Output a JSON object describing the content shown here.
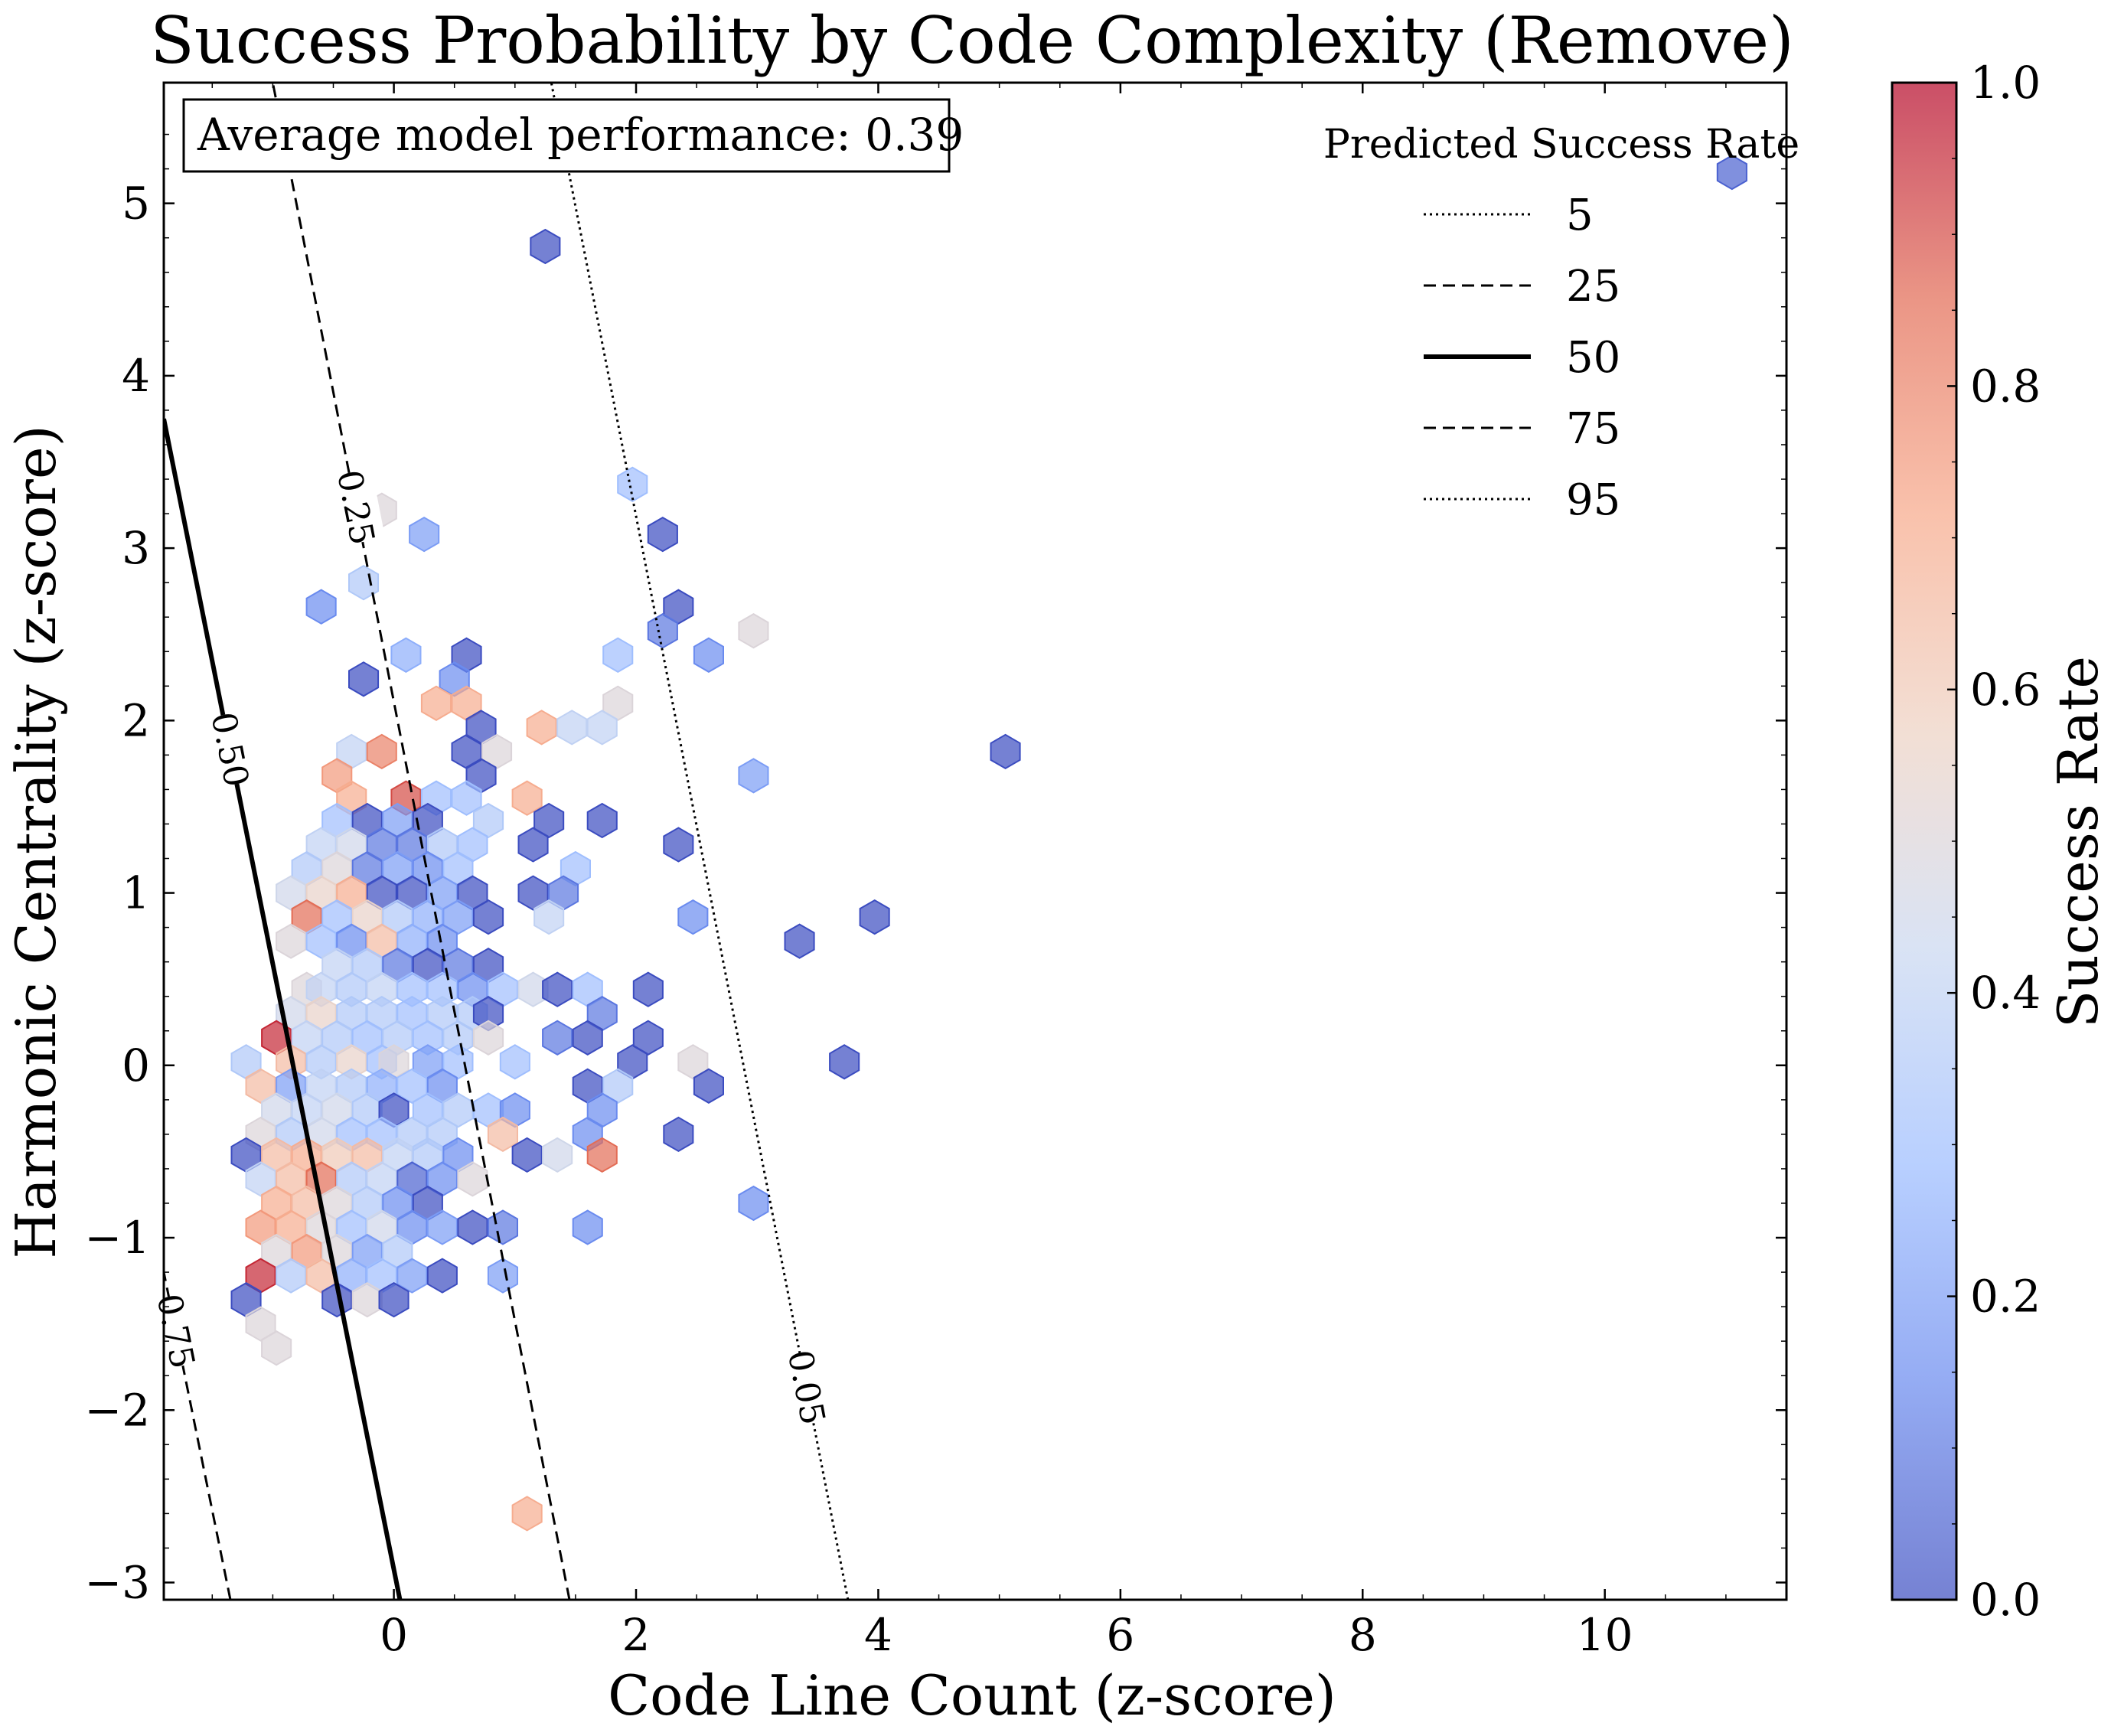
{
  "chart_data": {
    "type": "heatmap",
    "subtype": "hexbin-with-contours",
    "title": "Success Probability by Code Complexity (Remove)",
    "xlabel": "Code Line Count (z-score)",
    "ylabel": "Harmonic Centrality (z-score)",
    "xlim": [
      -1.9,
      11.5
    ],
    "ylim": [
      -3.1,
      5.7
    ],
    "xticks": [
      0,
      2,
      4,
      6,
      8,
      10
    ],
    "yticks": [
      -3,
      -2,
      -1,
      0,
      1,
      2,
      3,
      4,
      5
    ],
    "xtick_labels": [
      "0",
      "2",
      "4",
      "6",
      "8",
      "10"
    ],
    "ytick_labels": [
      "−3",
      "−2",
      "−1",
      "0",
      "1",
      "2",
      "3",
      "4",
      "5"
    ],
    "annotation": "Average model performance: 0.39",
    "legend": {
      "title": "Predicted Success Rate",
      "position": "top-right",
      "entries": [
        {
          "label": "5",
          "style": "dotted"
        },
        {
          "label": "25",
          "style": "dashed"
        },
        {
          "label": "50",
          "style": "solid"
        },
        {
          "label": "75",
          "style": "dashed"
        },
        {
          "label": "95",
          "style": "dotted"
        }
      ]
    },
    "contours": [
      {
        "level": "0.05",
        "style": "dotted",
        "x_at_bottom": 3.75,
        "x_at_top": 1.3
      },
      {
        "level": "0.25",
        "style": "dashed",
        "x_at_bottom": 1.45,
        "x_at_top": -1.0
      },
      {
        "level": "0.50",
        "style": "solid",
        "x_at_bottom": 0.05,
        "x_at_top": -1.9,
        "y_top": 3.75
      },
      {
        "level": "0.75",
        "style": "dashed",
        "x_at_bottom": -1.35,
        "x_at_top": -1.9,
        "y_top": -1.2
      }
    ],
    "colorbar": {
      "label": "Success Rate",
      "min": 0.0,
      "max": 1.0,
      "ticks": [
        "0.0",
        "0.2",
        "0.4",
        "0.6",
        "0.8",
        "1.0"
      ],
      "colormap": [
        "#3b4cc0",
        "#6788ee",
        "#9abbff",
        "#c9d7f0",
        "#edd1c2",
        "#f7a889",
        "#e26952",
        "#b40426"
      ]
    },
    "hexbins": [
      [
        11.05,
        5.18,
        0.05
      ],
      [
        1.25,
        4.75,
        0.0
      ],
      [
        1.97,
        3.37,
        0.3
      ],
      [
        2.22,
        3.08,
        0.0
      ],
      [
        0.25,
        3.08,
        0.2
      ],
      [
        -0.1,
        3.22,
        0.5
      ],
      [
        -0.25,
        2.8,
        0.35
      ],
      [
        -0.6,
        2.66,
        0.15
      ],
      [
        2.35,
        2.66,
        0.0
      ],
      [
        2.22,
        2.52,
        0.1
      ],
      [
        2.6,
        2.38,
        0.15
      ],
      [
        2.97,
        2.52,
        0.5
      ],
      [
        1.85,
        2.38,
        0.3
      ],
      [
        0.1,
        2.38,
        0.25
      ],
      [
        0.6,
        2.38,
        0.0
      ],
      [
        -0.25,
        2.24,
        0.0
      ],
      [
        0.5,
        2.24,
        0.15
      ],
      [
        0.35,
        2.1,
        0.7
      ],
      [
        0.6,
        2.1,
        0.7
      ],
      [
        1.85,
        2.1,
        0.5
      ],
      [
        0.72,
        1.96,
        0.0
      ],
      [
        1.22,
        1.96,
        0.7
      ],
      [
        1.47,
        1.96,
        0.4
      ],
      [
        1.72,
        1.96,
        0.4
      ],
      [
        0.6,
        1.82,
        0.0
      ],
      [
        0.85,
        1.82,
        0.5
      ],
      [
        -0.35,
        1.82,
        0.4
      ],
      [
        -0.1,
        1.82,
        0.8
      ],
      [
        5.05,
        1.82,
        0.0
      ],
      [
        0.72,
        1.68,
        0.0
      ],
      [
        -0.47,
        1.68,
        0.75
      ],
      [
        2.97,
        1.68,
        0.2
      ],
      [
        0.1,
        1.55,
        0.9
      ],
      [
        -0.35,
        1.55,
        0.7
      ],
      [
        0.35,
        1.55,
        0.3
      ],
      [
        0.6,
        1.55,
        0.3
      ],
      [
        1.1,
        1.55,
        0.7
      ],
      [
        -0.47,
        1.42,
        0.3
      ],
      [
        -0.22,
        1.42,
        0.0
      ],
      [
        0.03,
        1.42,
        0.2
      ],
      [
        0.28,
        1.42,
        0.0
      ],
      [
        0.78,
        1.42,
        0.35
      ],
      [
        1.28,
        1.42,
        0.0
      ],
      [
        1.72,
        1.42,
        0.0
      ],
      [
        -0.6,
        1.28,
        0.4
      ],
      [
        -0.35,
        1.28,
        0.45
      ],
      [
        -0.1,
        1.28,
        0.1
      ],
      [
        0.15,
        1.28,
        0.1
      ],
      [
        0.4,
        1.28,
        0.35
      ],
      [
        0.65,
        1.28,
        0.3
      ],
      [
        1.15,
        1.28,
        0.0
      ],
      [
        2.35,
        1.28,
        0.0
      ],
      [
        -0.72,
        1.14,
        0.35
      ],
      [
        -0.47,
        1.14,
        0.5
      ],
      [
        -0.22,
        1.14,
        0.1
      ],
      [
        0.03,
        1.14,
        0.2
      ],
      [
        0.28,
        1.14,
        0.15
      ],
      [
        0.53,
        1.14,
        0.3
      ],
      [
        1.5,
        1.14,
        0.3
      ],
      [
        -0.85,
        1.0,
        0.45
      ],
      [
        -0.6,
        1.0,
        0.55
      ],
      [
        -0.35,
        1.0,
        0.7
      ],
      [
        -0.1,
        1.0,
        0.0
      ],
      [
        0.15,
        1.0,
        0.0
      ],
      [
        0.4,
        1.0,
        0.2
      ],
      [
        0.65,
        1.0,
        0.0
      ],
      [
        1.15,
        1.0,
        0.0
      ],
      [
        1.4,
        1.0,
        0.1
      ],
      [
        -0.72,
        0.86,
        0.85
      ],
      [
        -0.47,
        0.86,
        0.3
      ],
      [
        -0.22,
        0.86,
        0.55
      ],
      [
        0.03,
        0.86,
        0.35
      ],
      [
        0.28,
        0.86,
        0.25
      ],
      [
        0.53,
        0.86,
        0.2
      ],
      [
        0.78,
        0.86,
        0.0
      ],
      [
        1.28,
        0.86,
        0.4
      ],
      [
        2.47,
        0.86,
        0.15
      ],
      [
        3.97,
        0.86,
        0.0
      ],
      [
        -0.85,
        0.72,
        0.5
      ],
      [
        -0.6,
        0.72,
        0.3
      ],
      [
        -0.35,
        0.72,
        0.15
      ],
      [
        -0.1,
        0.72,
        0.65
      ],
      [
        0.15,
        0.72,
        0.25
      ],
      [
        0.4,
        0.72,
        0.15
      ],
      [
        3.35,
        0.72,
        0.0
      ],
      [
        -0.47,
        0.58,
        0.4
      ],
      [
        -0.22,
        0.58,
        0.35
      ],
      [
        0.03,
        0.58,
        0.1
      ],
      [
        0.28,
        0.58,
        0.0
      ],
      [
        0.53,
        0.58,
        0.1
      ],
      [
        0.78,
        0.58,
        0.0
      ],
      [
        -0.72,
        0.44,
        0.5
      ],
      [
        -0.6,
        0.44,
        0.4
      ],
      [
        -0.35,
        0.44,
        0.35
      ],
      [
        -0.1,
        0.44,
        0.4
      ],
      [
        0.15,
        0.44,
        0.3
      ],
      [
        0.4,
        0.44,
        0.3
      ],
      [
        0.65,
        0.44,
        0.15
      ],
      [
        0.9,
        0.44,
        0.3
      ],
      [
        1.15,
        0.44,
        0.45
      ],
      [
        1.35,
        0.44,
        0.0
      ],
      [
        1.6,
        0.44,
        0.3
      ],
      [
        2.1,
        0.44,
        0.0
      ],
      [
        -0.85,
        0.3,
        0.45
      ],
      [
        -0.6,
        0.3,
        0.55
      ],
      [
        -0.35,
        0.3,
        0.35
      ],
      [
        -0.1,
        0.3,
        0.35
      ],
      [
        0.15,
        0.3,
        0.3
      ],
      [
        0.4,
        0.3,
        0.35
      ],
      [
        0.65,
        0.3,
        0.35
      ],
      [
        0.78,
        0.3,
        0.0
      ],
      [
        1.72,
        0.3,
        0.1
      ],
      [
        -0.97,
        0.16,
        0.95
      ],
      [
        -0.72,
        0.16,
        0.4
      ],
      [
        -0.47,
        0.16,
        0.35
      ],
      [
        -0.22,
        0.16,
        0.3
      ],
      [
        0.03,
        0.16,
        0.35
      ],
      [
        0.28,
        0.16,
        0.3
      ],
      [
        0.53,
        0.16,
        0.35
      ],
      [
        0.78,
        0.16,
        0.5
      ],
      [
        1.35,
        0.16,
        0.1
      ],
      [
        1.6,
        0.16,
        0.0
      ],
      [
        2.1,
        0.16,
        0.0
      ],
      [
        -1.22,
        0.02,
        0.35
      ],
      [
        -0.85,
        0.02,
        0.65
      ],
      [
        -0.6,
        0.02,
        0.35
      ],
      [
        -0.35,
        0.02,
        0.55
      ],
      [
        -0.1,
        0.02,
        0.3
      ],
      [
        0.0,
        0.02,
        0.5
      ],
      [
        0.28,
        0.02,
        0.2
      ],
      [
        0.53,
        0.02,
        0.3
      ],
      [
        1.0,
        0.02,
        0.3
      ],
      [
        1.97,
        0.02,
        0.0
      ],
      [
        2.47,
        0.02,
        0.5
      ],
      [
        3.72,
        0.02,
        0.0
      ],
      [
        -1.1,
        -0.12,
        0.65
      ],
      [
        -0.85,
        -0.12,
        0.2
      ],
      [
        -0.6,
        -0.12,
        0.4
      ],
      [
        -0.35,
        -0.12,
        0.35
      ],
      [
        -0.1,
        -0.12,
        0.25
      ],
      [
        0.15,
        -0.12,
        0.3
      ],
      [
        0.4,
        -0.12,
        0.15
      ],
      [
        1.6,
        -0.12,
        0.0
      ],
      [
        1.85,
        -0.12,
        0.35
      ],
      [
        2.6,
        -0.12,
        0.0
      ],
      [
        -0.97,
        -0.26,
        0.45
      ],
      [
        -0.72,
        -0.26,
        0.4
      ],
      [
        -0.47,
        -0.26,
        0.45
      ],
      [
        -0.22,
        -0.26,
        0.35
      ],
      [
        0.0,
        -0.26,
        0.0
      ],
      [
        0.28,
        -0.26,
        0.3
      ],
      [
        0.53,
        -0.26,
        0.35
      ],
      [
        0.78,
        -0.26,
        0.3
      ],
      [
        1.0,
        -0.26,
        0.15
      ],
      [
        1.72,
        -0.26,
        0.15
      ],
      [
        -1.1,
        -0.4,
        0.5
      ],
      [
        -0.85,
        -0.4,
        0.35
      ],
      [
        -0.6,
        -0.4,
        0.45
      ],
      [
        -0.35,
        -0.4,
        0.3
      ],
      [
        -0.1,
        -0.4,
        0.3
      ],
      [
        0.15,
        -0.4,
        0.35
      ],
      [
        0.4,
        -0.4,
        0.35
      ],
      [
        0.9,
        -0.4,
        0.65
      ],
      [
        1.6,
        -0.4,
        0.15
      ],
      [
        2.35,
        -0.4,
        0.0
      ],
      [
        -1.22,
        -0.52,
        0.0
      ],
      [
        -0.97,
        -0.52,
        0.65
      ],
      [
        -0.72,
        -0.52,
        0.7
      ],
      [
        -0.47,
        -0.52,
        0.6
      ],
      [
        -0.22,
        -0.52,
        0.65
      ],
      [
        0.03,
        -0.52,
        0.4
      ],
      [
        0.28,
        -0.52,
        0.35
      ],
      [
        0.53,
        -0.52,
        0.15
      ],
      [
        1.1,
        -0.52,
        0.0
      ],
      [
        1.35,
        -0.52,
        0.45
      ],
      [
        1.72,
        -0.52,
        0.85
      ],
      [
        -1.1,
        -0.66,
        0.4
      ],
      [
        -0.85,
        -0.66,
        0.65
      ],
      [
        -0.6,
        -0.66,
        0.85
      ],
      [
        -0.35,
        -0.66,
        0.35
      ],
      [
        -0.1,
        -0.66,
        0.4
      ],
      [
        0.15,
        -0.66,
        0.05
      ],
      [
        0.4,
        -0.66,
        0.15
      ],
      [
        0.65,
        -0.66,
        0.5
      ],
      [
        -0.97,
        -0.8,
        0.7
      ],
      [
        -0.72,
        -0.8,
        0.65
      ],
      [
        -0.47,
        -0.8,
        0.5
      ],
      [
        -0.22,
        -0.8,
        0.35
      ],
      [
        0.03,
        -0.8,
        0.15
      ],
      [
        0.28,
        -0.8,
        0.0
      ],
      [
        -1.1,
        -0.94,
        0.75
      ],
      [
        -0.85,
        -0.94,
        0.7
      ],
      [
        -0.6,
        -0.94,
        0.5
      ],
      [
        -0.35,
        -0.94,
        0.3
      ],
      [
        -0.1,
        -0.94,
        0.45
      ],
      [
        0.15,
        -0.94,
        0.15
      ],
      [
        0.4,
        -0.94,
        0.2
      ],
      [
        0.65,
        -0.94,
        0.0
      ],
      [
        0.9,
        -0.94,
        0.1
      ],
      [
        1.6,
        -0.94,
        0.15
      ],
      [
        -0.97,
        -1.08,
        0.5
      ],
      [
        -0.72,
        -1.08,
        0.75
      ],
      [
        -0.47,
        -1.08,
        0.5
      ],
      [
        -0.22,
        -1.08,
        0.2
      ],
      [
        0.03,
        -1.08,
        0.35
      ],
      [
        -1.1,
        -1.22,
        0.95
      ],
      [
        -0.85,
        -1.22,
        0.35
      ],
      [
        -0.6,
        -1.22,
        0.65
      ],
      [
        -0.35,
        -1.22,
        0.25
      ],
      [
        -0.1,
        -1.22,
        0.3
      ],
      [
        0.15,
        -1.22,
        0.2
      ],
      [
        0.4,
        -1.22,
        0.0
      ],
      [
        0.9,
        -1.22,
        0.2
      ],
      [
        -1.22,
        -1.36,
        0.0
      ],
      [
        -0.47,
        -1.36,
        0.0
      ],
      [
        -0.22,
        -1.36,
        0.5
      ],
      [
        0.0,
        -1.36,
        0.0
      ],
      [
        -1.1,
        -1.5,
        0.5
      ],
      [
        -0.97,
        -1.64,
        0.5
      ],
      [
        -0.35,
        3.22,
        0.5
      ],
      [
        1.1,
        -2.6,
        0.7
      ],
      [
        2.97,
        -0.8,
        0.15
      ]
    ]
  }
}
